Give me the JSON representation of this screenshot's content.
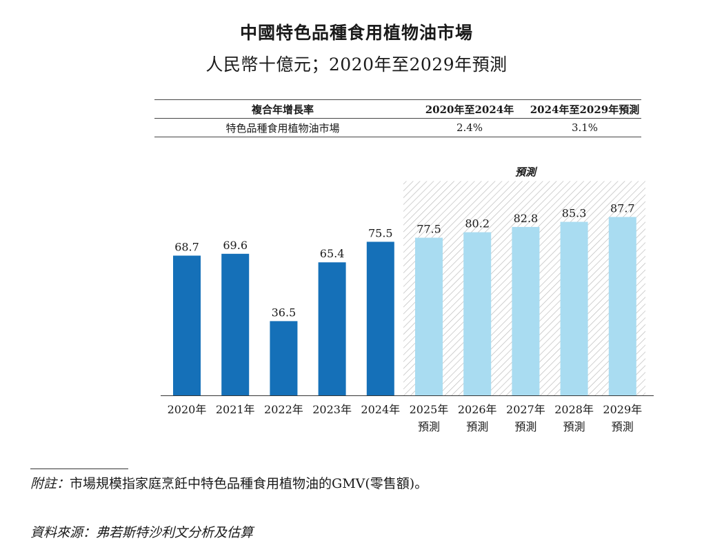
{
  "title": "中國特色品種食用植物油市場",
  "subtitle": "人民幣十億元；2020年至2029年預測",
  "cagr_table": {
    "header": [
      "複合年增長率",
      "2020年至2024年",
      "2024年至2029年預測"
    ],
    "rows": [
      {
        "label": "特色品種食用植物油市場",
        "v1": "2.4%",
        "v2": "3.1%"
      }
    ]
  },
  "chart_data": {
    "type": "bar",
    "title": "中國特色品種食用植物油市場",
    "ylabel": "人民幣十億元",
    "xlabel": "",
    "ylim": [
      0,
      90
    ],
    "grid": false,
    "categories": [
      "2020年",
      "2021年",
      "2022年",
      "2023年",
      "2024年",
      "2025年\n預測",
      "2026年\n預測",
      "2027年\n預測",
      "2028年\n預測",
      "2029年\n預測"
    ],
    "values": [
      68.7,
      69.6,
      36.5,
      65.4,
      75.5,
      77.5,
      80.2,
      82.8,
      85.3,
      87.7
    ],
    "value_labels": [
      "68.7",
      "69.6",
      "36.5",
      "65.4",
      "75.5",
      "77.5",
      "80.2",
      "82.8",
      "85.3",
      "87.7"
    ],
    "forecast_from_index": 5,
    "forecast_label": "預測",
    "colors": {
      "actual": "#1570b8",
      "forecast": "#a9dcf1",
      "hatch": "#b5b5b5"
    }
  },
  "footnotes": {
    "note_label": "附註：",
    "note_text": "市場規模指家庭烹飪中特色品種食用植物油的GMV(零售額)。",
    "source_label": "資料來源：",
    "source_text": "弗若斯特沙利文分析及估算"
  }
}
